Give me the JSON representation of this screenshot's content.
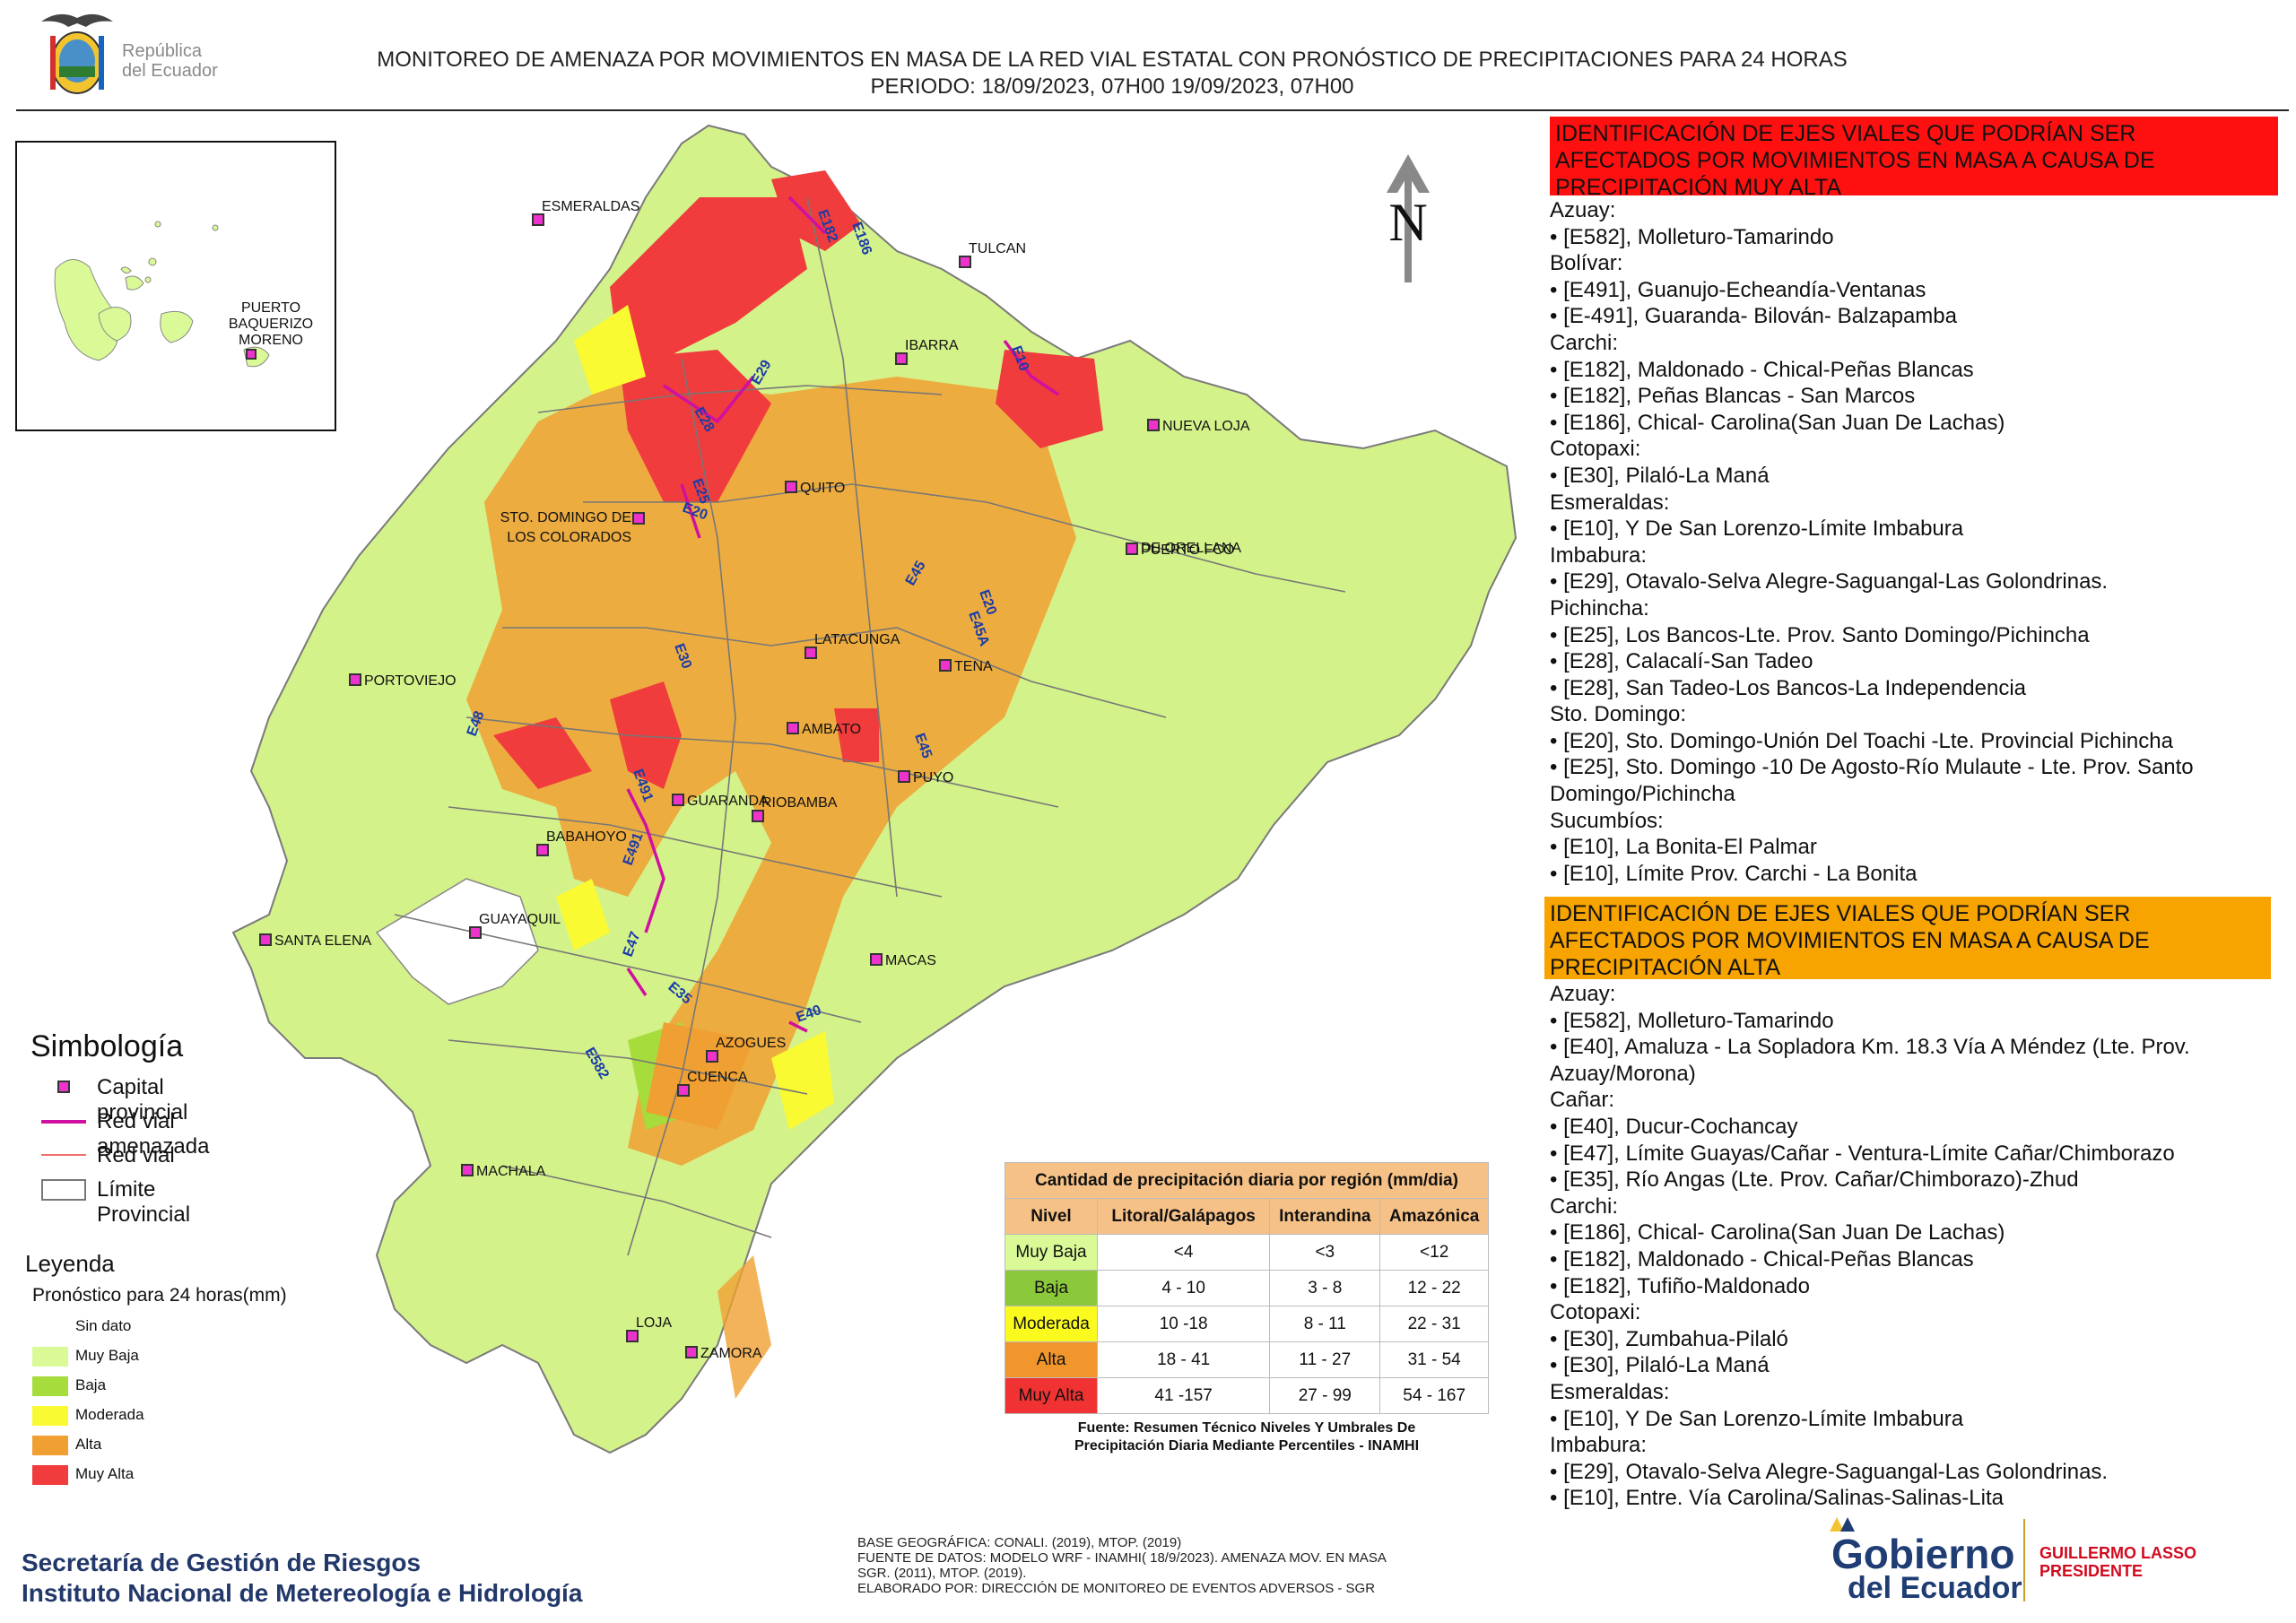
{
  "header": {
    "logo_text_1": "República",
    "logo_text_2": "del Ecuador",
    "title_line1": "MONITOREO DE AMENAZA POR MOVIMIENTOS EN MASA DE LA RED VIAL  ESTATAL  CON PRONÓSTICO  DE  PRECIPITACIONES PARA 24 HORAS",
    "title_line2": "PERIODO: 18/09/2023, 07H00 19/09/2023, 07H00"
  },
  "map": {
    "north_label": "N",
    "galapagos_city": [
      "PUERTO",
      "BAQUERIZO",
      "MORENO"
    ],
    "cities": [
      "ESMERALDAS",
      "TULCAN",
      "IBARRA",
      "NUEVA LOJA",
      "QUITO",
      "STO. DOMINGO DE",
      "LOS COLORADOS",
      "PUERTO FCO",
      "DE ORELLANA",
      "LATACUNGA",
      "TENA",
      "PORTOVIEJO",
      "AMBATO",
      "PUYO",
      "GUARANDA",
      "RIOBAMBA",
      "BABAHOYO",
      "GUAYAQUIL",
      "SANTA ELENA",
      "MACAS",
      "AZOGUES",
      "CUENCA",
      "MACHALA",
      "LOJA",
      "ZAMORA"
    ],
    "roads": [
      "E182",
      "E186",
      "E10",
      "E29",
      "E28",
      "E25",
      "E20",
      "E45",
      "E20",
      "E45A",
      "E30",
      "E48",
      "E491",
      "E45",
      "E491",
      "E47",
      "E35",
      "E40",
      "E582"
    ]
  },
  "simbologia": {
    "title": "Simbología",
    "items": [
      "Capital provincial",
      "Red vial amenazada",
      "Red vial",
      "Límite Provincial"
    ]
  },
  "leyenda": {
    "title": "Leyenda",
    "subtitle": "Pronóstico para 24 horas(mm)",
    "items": [
      {
        "label": "Sin dato",
        "color": "#ffffff"
      },
      {
        "label": "Muy Baja",
        "color": "#d9fa96"
      },
      {
        "label": "Baja",
        "color": "#a6dc3c"
      },
      {
        "label": "Moderada",
        "color": "#fafa32"
      },
      {
        "label": "Alta",
        "color": "#f0a032"
      },
      {
        "label": "Muy Alta",
        "color": "#f03c3c"
      }
    ]
  },
  "precip_table": {
    "title": "Cantidad de precipitación diaria por región (mm/dia)",
    "headers": [
      "Nivel",
      "Litoral/Galápagos",
      "Interandina",
      "Amazónica"
    ],
    "rows": [
      {
        "nivel": "Muy Baja",
        "lit": "<4",
        "int": "<3",
        "ama": "<12",
        "color": "#d9fa96"
      },
      {
        "nivel": "Baja",
        "lit": "4 - 10",
        "int": "3 - 8",
        "ama": "12 - 22",
        "color": "#8cc83c"
      },
      {
        "nivel": "Moderada",
        "lit": "10 -18",
        "int": "8 - 11",
        "ama": "22 - 31",
        "color": "#fafa1e"
      },
      {
        "nivel": "Alta",
        "lit": "18 - 41",
        "int": "11 - 27",
        "ama": "31 - 54",
        "color": "#f0962d"
      },
      {
        "nivel": "Muy Alta",
        "lit": "41 -157",
        "int": "27 - 99",
        "ama": "54 - 167",
        "color": "#f03232"
      }
    ],
    "source_1": "Fuente: Resumen Técnico Niveles Y Umbrales De",
    "source_2": "Precipitación Diaria Mediante Percentiles - INAMHI"
  },
  "panel_muy_alta": {
    "heading": [
      "IDENTIFICACIÓN DE EJES VIALES QUE PODRÍAN SER",
      "AFECTADOS POR MOVIMIENTOS EN MASA A CAUSA DE",
      "PRECIPITACIÓN MUY ALTA"
    ],
    "lines": [
      "Azuay:",
      "• [E582], Molleturo-Tamarindo",
      "Bolívar:",
      "• [E491], Guanujo-Echeandía-Ventanas",
      "• [E-491], Guaranda- Bilován- Balzapamba",
      "Carchi:",
      "• [E182], Maldonado - Chical-Peñas Blancas",
      "• [E182], Peñas Blancas - San Marcos",
      "• [E186], Chical- Carolina(San Juan De Lachas)",
      "Cotopaxi:",
      "• [E30], Pilaló-La Maná",
      "Esmeraldas:",
      "• [E10], Y De San Lorenzo-Límite Imbabura",
      "Imbabura:",
      "• [E29], Otavalo-Selva Alegre-Saguangal-Las Golondrinas.",
      "Pichincha:",
      "• [E25], Los Bancos-Lte. Prov. Santo Domingo/Pichincha",
      "• [E28], Calacalí-San Tadeo",
      "• [E28], San Tadeo-Los Bancos-La Independencia",
      "Sto. Domingo:",
      "• [E20], Sto. Domingo-Unión Del Toachi -Lte. Provincial Pichincha",
      "• [E25], Sto. Domingo -10 De Agosto-Río Mulaute - Lte. Prov. Santo",
      "Domingo/Pichincha",
      "Sucumbíos:",
      "• [E10], La Bonita-El Palmar",
      "• [E10], Límite Prov. Carchi - La Bonita"
    ]
  },
  "panel_alta": {
    "heading": [
      "IDENTIFICACIÓN DE EJES VIALES QUE PODRÍAN SER",
      "AFECTADOS POR MOVIMIENTOS EN MASA A CAUSA DE",
      "PRECIPITACIÓN  ALTA"
    ],
    "lines": [
      "Azuay:",
      "• [E582], Molleturo-Tamarindo",
      "• [E40], Amaluza - La Sopladora Km. 18.3 Vía A Méndez (Lte. Prov.",
      "Azuay/Morona)",
      "Cañar:",
      "• [E40], Ducur-Cochancay",
      "• [E47], Límite Guayas/Cañar - Ventura-Límite Cañar/Chimborazo",
      "• [E35], Río Angas (Lte. Prov. Cañar/Chimborazo)-Zhud",
      "Carchi:",
      "• [E186], Chical- Carolina(San Juan De Lachas)",
      "• [E182], Maldonado - Chical-Peñas Blancas",
      "• [E182], Tufiño-Maldonado",
      "Cotopaxi:",
      "• [E30], Zumbahua-Pilaló",
      "• [E30], Pilaló-La Maná",
      "Esmeraldas:",
      "• [E10], Y De San Lorenzo-Límite Imbabura",
      "Imbabura:",
      "• [E29], Otavalo-Selva Alegre-Saguangal-Las Golondrinas.",
      "• [E10], Entre. Vía Carolina/Salinas-Salinas-Lita"
    ]
  },
  "footer": {
    "org_1": "Secretaría de Gestión de Riesgos",
    "org_2": "Instituto Nacional de Metereología e Hidrología",
    "credits": [
      "BASE GEOGRÁFICA: CONALI. (2019), MTOP. (2019)",
      "FUENTE DE DATOS: MODELO WRF - INAMHI( 18/9/2023).  AMENAZA MOV. EN MASA",
      "SGR. (2011), MTOP. (2019).",
      "ELABORADO POR: DIRECCIÓN DE MONITOREO DE EVENTOS ADVERSOS - SGR"
    ],
    "gob_1": "Gobierno",
    "gob_2": "del Ecuador",
    "president_1": "GUILLERMO LASSO",
    "president_2": "PRESIDENTE"
  }
}
